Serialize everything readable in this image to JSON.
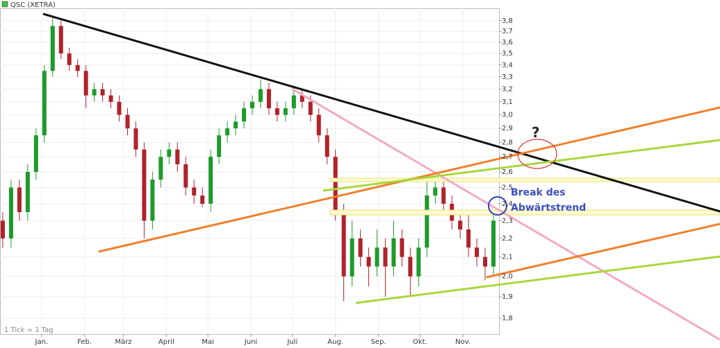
{
  "chart_data": {
    "type": "candlestick",
    "title": "QSC (XETRA)",
    "footnote": "1 Tick = 1 Tag",
    "annotations": [
      "?",
      "Break des",
      "Abwärtstrend"
    ],
    "log_y": true,
    "grid": true,
    "up_color": "#1e9a2a",
    "down_color": "#b0222a",
    "legend_color": "#3fbf3f",
    "xlim": [
      -30,
      330
    ],
    "ylim": [
      1.73,
      3.92
    ],
    "xticks": [
      {
        "value": 0,
        "label": "Jan."
      },
      {
        "value": 31,
        "label": "Feb."
      },
      {
        "value": 59,
        "label": "März"
      },
      {
        "value": 90,
        "label": "April"
      },
      {
        "value": 120,
        "label": "Mai"
      },
      {
        "value": 151,
        "label": "Juni"
      },
      {
        "value": 181,
        "label": "Juli"
      },
      {
        "value": 212,
        "label": "Aug."
      },
      {
        "value": 243,
        "label": "Sep."
      },
      {
        "value": 273,
        "label": "Okt."
      },
      {
        "value": 304,
        "label": "Nov."
      }
    ],
    "yticks": [
      {
        "value": 1.8,
        "label": "1,8"
      },
      {
        "value": 1.9,
        "label": "1,9"
      },
      {
        "value": 2.0,
        "label": "2,0"
      },
      {
        "value": 2.1,
        "label": "2,1"
      },
      {
        "value": 2.2,
        "label": "2,2"
      },
      {
        "value": 2.3,
        "label": "2,3"
      },
      {
        "value": 2.4,
        "label": "2,4"
      },
      {
        "value": 2.5,
        "label": "2,5"
      },
      {
        "value": 2.6,
        "label": "2,6"
      },
      {
        "value": 2.7,
        "label": "2,7"
      },
      {
        "value": 2.8,
        "label": "2,8"
      },
      {
        "value": 2.9,
        "label": "2,9"
      },
      {
        "value": 3.0,
        "label": "3,0"
      },
      {
        "value": 3.1,
        "label": "3,1"
      },
      {
        "value": 3.2,
        "label": "3,2"
      },
      {
        "value": 3.3,
        "label": "3,3"
      },
      {
        "value": 3.4,
        "label": "3,4"
      },
      {
        "value": 3.5,
        "label": "3,5"
      },
      {
        "value": 3.6,
        "label": "3,6"
      },
      {
        "value": 3.7,
        "label": "3,7"
      },
      {
        "value": 3.8,
        "label": "3,8"
      }
    ],
    "x": [
      -28,
      -22,
      -16,
      -10,
      -4,
      2,
      8,
      14,
      20,
      26,
      32,
      38,
      44,
      50,
      56,
      62,
      68,
      74,
      80,
      86,
      92,
      98,
      104,
      110,
      116,
      122,
      128,
      134,
      140,
      146,
      152,
      158,
      164,
      170,
      176,
      182,
      188,
      194,
      200,
      206,
      212,
      218,
      224,
      230,
      236,
      242,
      248,
      254,
      260,
      266,
      272,
      278,
      284,
      290,
      296,
      302,
      308,
      314,
      320,
      326
    ],
    "open": [
      2.3,
      2.2,
      2.5,
      2.35,
      2.6,
      2.85,
      3.35,
      3.75,
      3.5,
      3.4,
      3.35,
      3.15,
      3.2,
      3.15,
      3.1,
      3.0,
      2.9,
      2.75,
      2.3,
      2.55,
      2.7,
      2.75,
      2.65,
      2.5,
      2.45,
      2.4,
      2.7,
      2.85,
      2.9,
      2.95,
      3.05,
      3.1,
      3.2,
      3.05,
      3.0,
      3.05,
      3.15,
      3.1,
      3.0,
      2.85,
      2.7,
      2.35,
      2.0,
      2.2,
      2.1,
      2.05,
      2.15,
      2.05,
      2.2,
      2.1,
      2.0,
      2.15,
      2.45,
      2.5,
      2.4,
      2.3,
      2.25,
      2.15,
      2.1,
      2.05
    ],
    "high": [
      2.35,
      2.55,
      2.55,
      2.65,
      2.9,
      3.4,
      3.85,
      3.8,
      3.55,
      3.45,
      3.4,
      3.25,
      3.25,
      3.2,
      3.15,
      3.05,
      2.95,
      2.8,
      2.6,
      2.75,
      2.8,
      2.8,
      2.7,
      2.55,
      2.5,
      2.75,
      2.9,
      2.95,
      3.0,
      3.1,
      3.15,
      3.28,
      3.25,
      3.1,
      3.1,
      3.22,
      3.2,
      3.15,
      3.05,
      2.9,
      2.75,
      2.4,
      2.3,
      2.25,
      2.15,
      2.25,
      2.2,
      2.3,
      2.25,
      2.15,
      2.2,
      2.55,
      2.55,
      2.55,
      2.45,
      2.35,
      2.35,
      2.2,
      2.15,
      2.35
    ],
    "low": [
      2.15,
      2.15,
      2.3,
      2.3,
      2.55,
      2.8,
      3.3,
      3.45,
      3.35,
      3.3,
      3.05,
      3.1,
      3.1,
      3.05,
      2.95,
      2.85,
      2.7,
      2.2,
      2.25,
      2.5,
      2.65,
      2.6,
      2.45,
      2.4,
      2.38,
      2.35,
      2.65,
      2.8,
      2.85,
      2.9,
      3.0,
      3.05,
      3.0,
      2.95,
      2.95,
      3.0,
      3.05,
      2.95,
      2.8,
      2.65,
      2.3,
      1.88,
      1.95,
      2.05,
      1.95,
      2.0,
      1.9,
      2.0,
      2.05,
      1.9,
      1.95,
      2.1,
      2.4,
      2.35,
      2.25,
      2.2,
      2.1,
      2.05,
      1.98,
      2.0
    ],
    "close": [
      2.2,
      2.5,
      2.35,
      2.6,
      2.85,
      3.35,
      3.75,
      3.5,
      3.4,
      3.35,
      3.15,
      3.2,
      3.15,
      3.1,
      3.0,
      2.9,
      2.75,
      2.3,
      2.55,
      2.7,
      2.75,
      2.65,
      2.5,
      2.45,
      2.4,
      2.7,
      2.85,
      2.9,
      2.95,
      3.05,
      3.1,
      3.2,
      3.05,
      3.0,
      3.05,
      3.15,
      3.1,
      3.0,
      2.85,
      2.7,
      2.35,
      2.0,
      2.2,
      2.1,
      2.05,
      2.15,
      2.05,
      2.2,
      2.1,
      2.0,
      2.15,
      2.45,
      2.5,
      2.4,
      2.3,
      2.25,
      2.15,
      2.1,
      2.05,
      2.3
    ]
  }
}
